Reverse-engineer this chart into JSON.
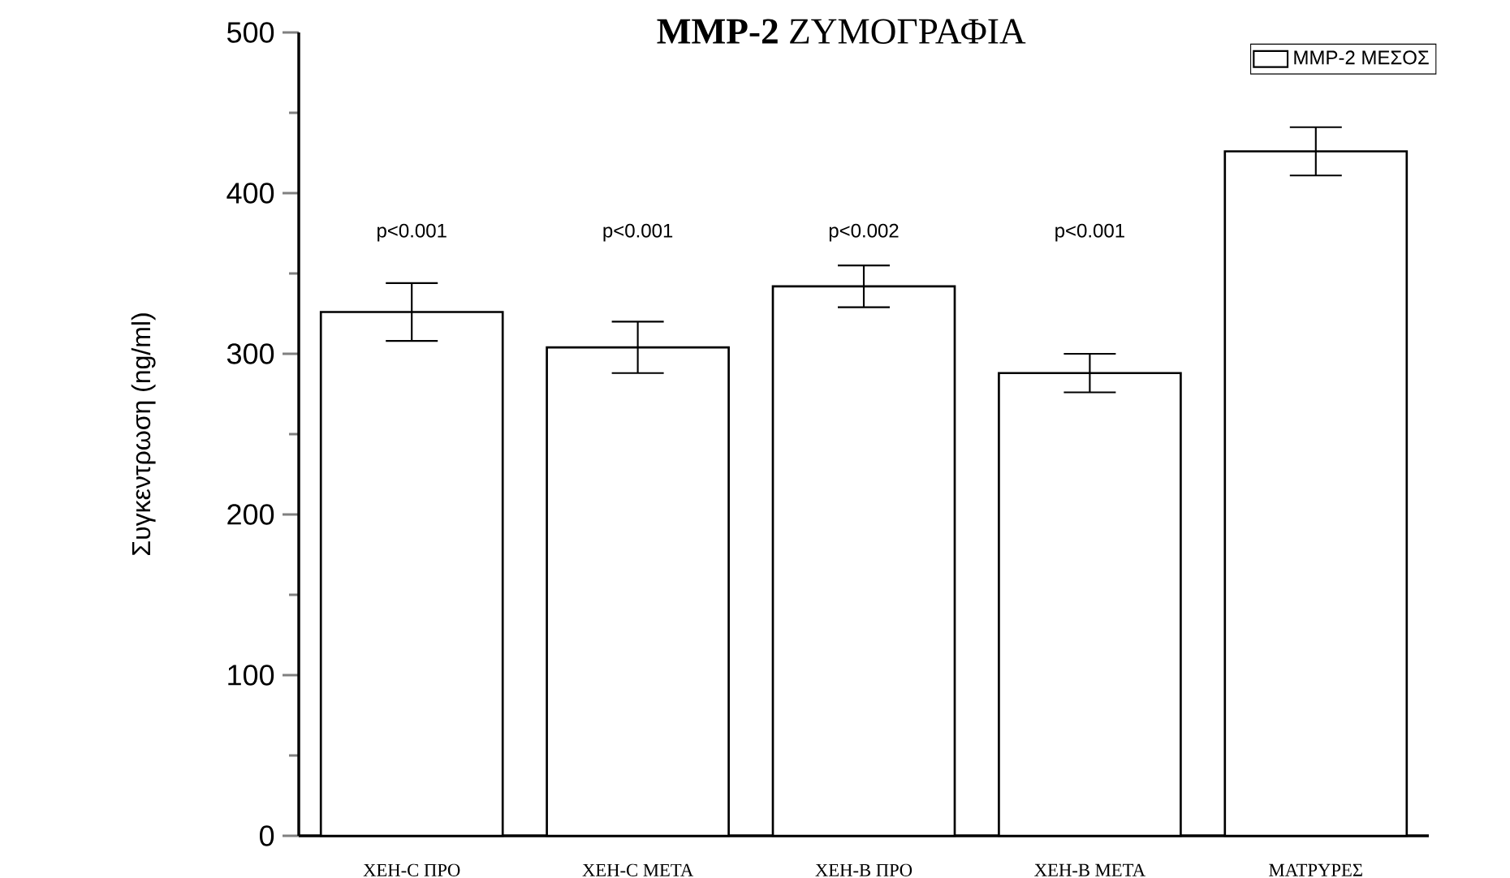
{
  "chart_data": {
    "type": "bar",
    "title": "**MMP-2** ΖΥΜΟΓΡΑΦΙΑ",
    "ylabel": "Συγκεντρωση  (ng/ml)",
    "categories": [
      "ΧΕΗ-C ΠΡΟ",
      "ΧΕΗ-C ΜΕΤΑ",
      "ΧΕΗ-B ΠΡΟ",
      "ΧΕΗ-B ΜΕΤΑ",
      "ΜΑΤΡΥΡΕΣ"
    ],
    "series": [
      {
        "name": "MMP-2 ΜΕΣΟΣ",
        "color": "#ffffff",
        "values": [
          326,
          304,
          342,
          288,
          426
        ],
        "errors": [
          18,
          16,
          13,
          12,
          15
        ]
      }
    ],
    "ylim": [
      0,
      500
    ],
    "yticks": [
      0,
      100,
      200,
      300,
      400,
      500
    ],
    "annotations": [
      "p<0.001",
      "p<0.001",
      "p<0.002",
      "p<0.001"
    ],
    "legend": "top right",
    "grid": false
  }
}
